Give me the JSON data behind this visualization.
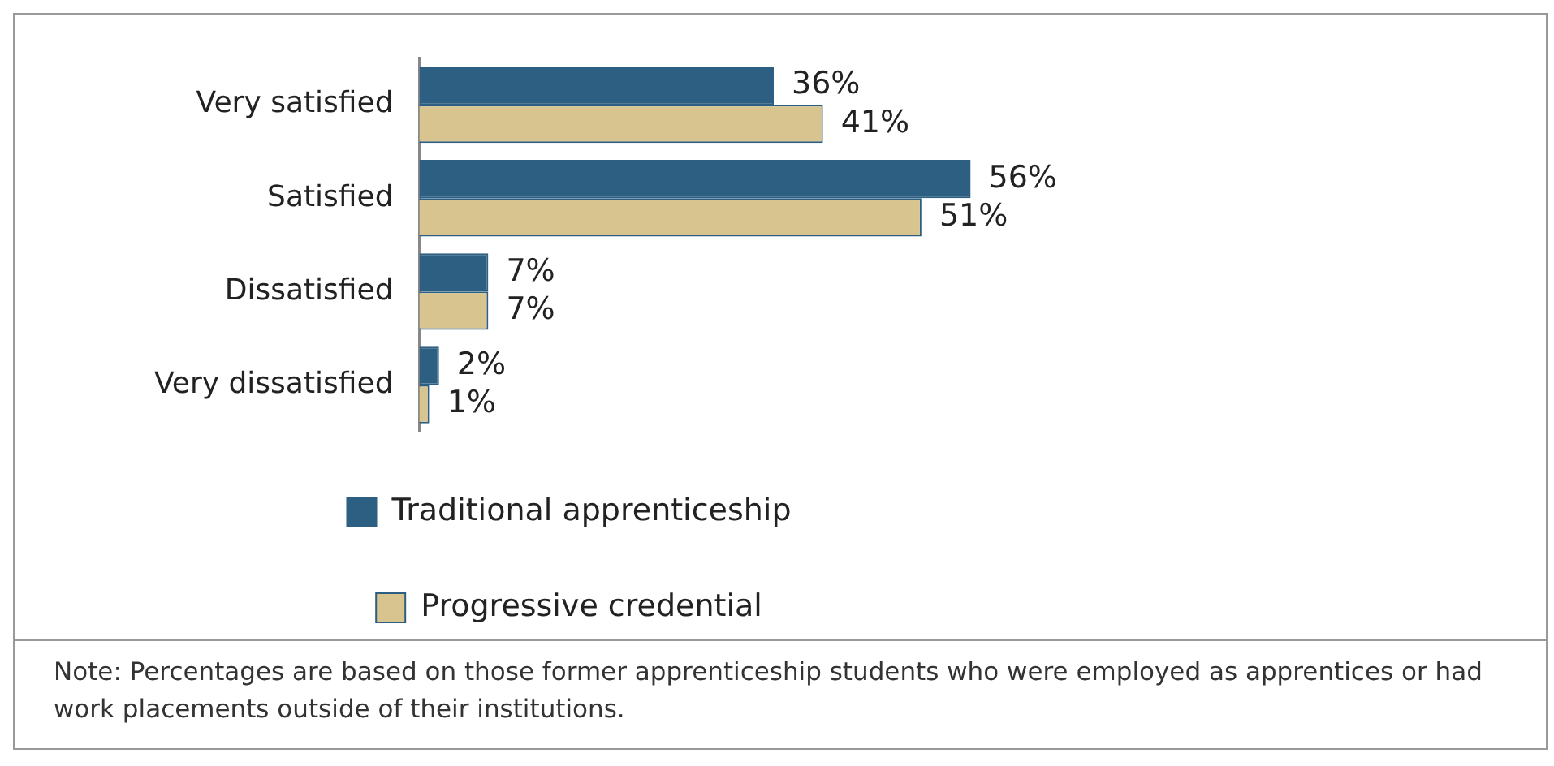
{
  "chart_data": {
    "type": "bar",
    "orientation": "horizontal",
    "categories": [
      "Very satisfied",
      "Satisfied",
      "Dissatisfied",
      "Very dissatisfied"
    ],
    "series": [
      {
        "name": "Traditional apprenticeship",
        "color": "#2d5f82",
        "values": [
          36,
          56,
          7,
          2
        ],
        "value_labels": [
          "36%",
          "56%",
          "7%",
          "2%"
        ]
      },
      {
        "name": "Progressive credential",
        "color": "#d8c48e",
        "values": [
          41,
          51,
          7,
          1
        ],
        "value_labels": [
          "41%",
          "51%",
          "7%",
          "1%"
        ]
      }
    ],
    "legend": "bottom",
    "grid": false,
    "annotations": [
      "Note:  Percentages are based on those former apprenticeship students who were employed as apprentices or had work placements outside of their institutions."
    ]
  }
}
